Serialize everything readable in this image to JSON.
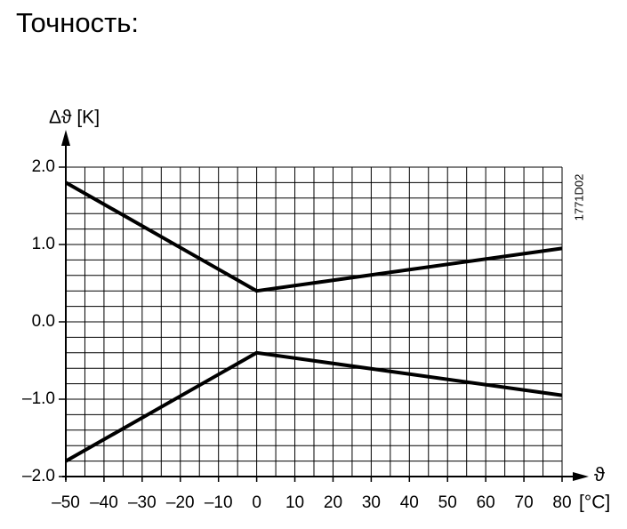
{
  "chart_data": {
    "type": "line",
    "title": "Точность:",
    "ylabel": "Δϑ [K]",
    "xlabel": "ϑ",
    "xunit": "[°C]",
    "code": "1771D02",
    "x": [
      -50,
      0,
      80
    ],
    "series": [
      {
        "color": "#000000",
        "values": [
          1.8,
          0.4,
          0.95
        ]
      },
      {
        "color": "#000000",
        "values": [
          -1.8,
          -0.4,
          -0.95
        ]
      }
    ],
    "xlim": [
      -50,
      80
    ],
    "ylim": [
      -2,
      2
    ],
    "xticks": [
      {
        "value": -50,
        "label": "–50"
      },
      {
        "value": -40,
        "label": "–40"
      },
      {
        "value": -30,
        "label": "–30"
      },
      {
        "value": -20,
        "label": "–20"
      },
      {
        "value": -10,
        "label": "–10"
      },
      0,
      10,
      20,
      30,
      40,
      50,
      60,
      70,
      80
    ],
    "yticks": [
      {
        "value": 2,
        "label": "2.0"
      },
      {
        "value": 1,
        "label": "1.0"
      },
      {
        "value": 0,
        "label": "0.0"
      },
      {
        "value": -1,
        "label": "–1.0"
      },
      {
        "value": -2,
        "label": "–2.0"
      }
    ],
    "xminor": 5,
    "yminor": 0.2,
    "grid": true
  }
}
